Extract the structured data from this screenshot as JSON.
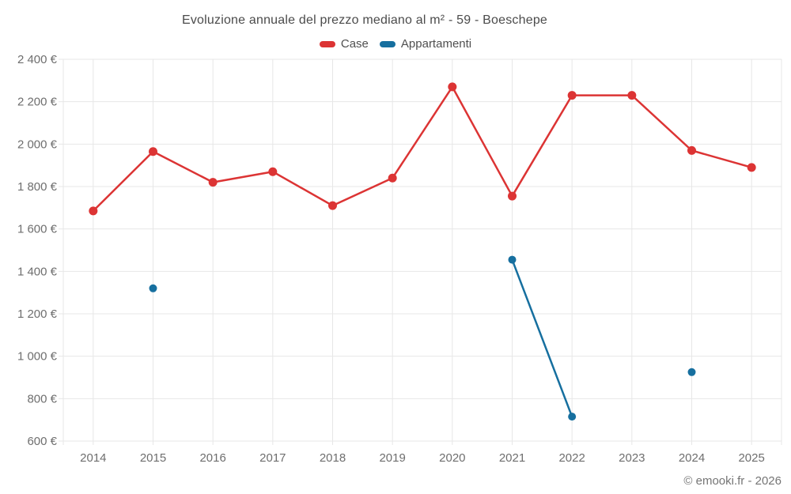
{
  "title": "Evoluzione annuale del prezzo mediano al m² - 59 - Boeschepe",
  "copyright": "© emooki.fr - 2026",
  "colors": {
    "case_red": "#dc3434",
    "appartamenti_blue": "#166f9f",
    "gridline": "#e7e7e7",
    "title_text": "#4b4b4b",
    "axis_text": "#6e6e6e",
    "copyright_text": "#757575"
  },
  "legend": {
    "items": [
      {
        "label": "Case",
        "color": "#dc3434"
      },
      {
        "label": "Appartamenti",
        "color": "#166f9f"
      }
    ]
  },
  "chart_data": {
    "type": "line",
    "title": "Evoluzione annuale del prezzo mediano al m² - 59 - Boeschepe",
    "categories": [
      "2014",
      "2015",
      "2016",
      "2017",
      "2018",
      "2019",
      "2020",
      "2021",
      "2022",
      "2023",
      "2024",
      "2025"
    ],
    "series": [
      {
        "name": "Case",
        "color": "#dc3434",
        "marker_radius": 5.5,
        "values": [
          1685,
          1965,
          1820,
          1870,
          1710,
          1840,
          2270,
          1755,
          2230,
          2230,
          1970,
          1890
        ]
      },
      {
        "name": "Appartamenti",
        "color": "#166f9f",
        "marker_radius": 5,
        "values": [
          null,
          1320,
          null,
          null,
          null,
          null,
          null,
          1455,
          715,
          null,
          925,
          null
        ]
      }
    ],
    "xlabel": "",
    "ylabel": "",
    "ylim": [
      600,
      2400
    ],
    "ytick_step": 200,
    "ytick_suffix": " €",
    "grid": true,
    "legend_position": "top"
  }
}
